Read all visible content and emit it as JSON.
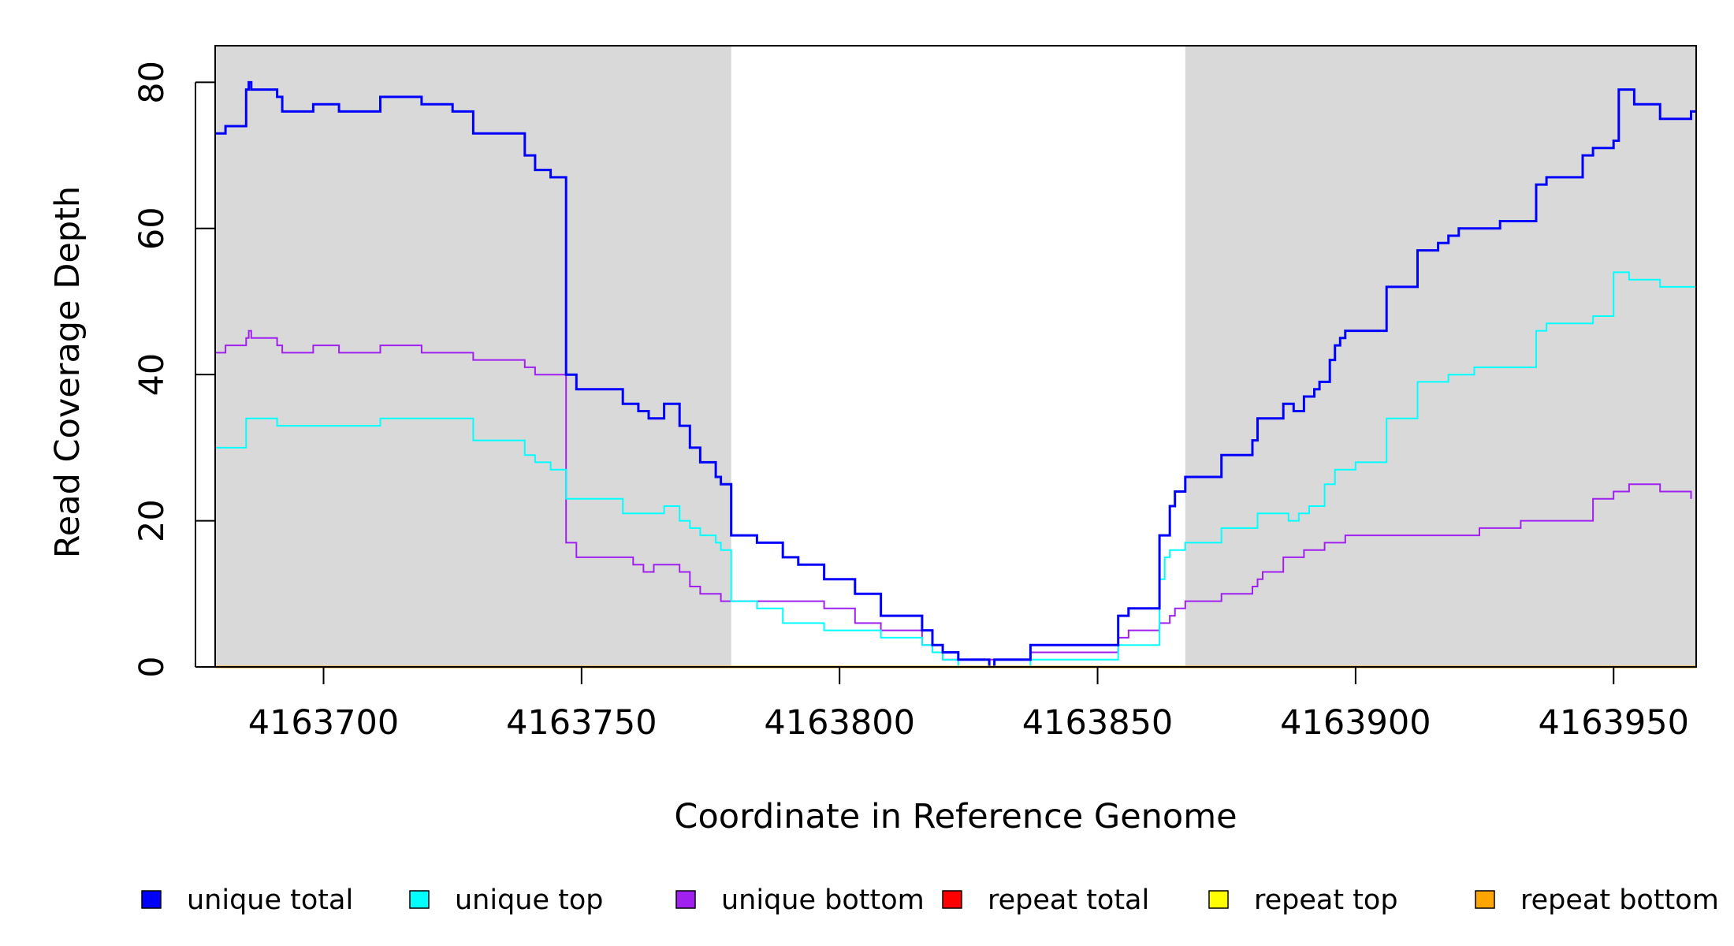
{
  "chart_data": {
    "type": "line",
    "xlabel": "Coordinate in Reference Genome",
    "ylabel": "Read Coverage Depth",
    "xlim": [
      4163679,
      4163966
    ],
    "ylim": [
      0,
      85
    ],
    "x_ticks": [
      4163700,
      4163750,
      4163800,
      4163850,
      4163900,
      4163950
    ],
    "x_tick_labels": [
      "4163700",
      "4163750",
      "4163800",
      "4163850",
      "4163900",
      "4163950"
    ],
    "y_ticks": [
      0,
      20,
      40,
      60,
      80
    ],
    "y_tick_labels": [
      "0",
      "20",
      "40",
      "60",
      "80"
    ],
    "shaded_regions": [
      [
        4163679,
        4163779
      ],
      [
        4163867,
        4163966
      ]
    ],
    "shade_color": "#d9d9d9",
    "legend_position": "bottom",
    "series": [
      {
        "name": "unique total",
        "color": "#0000ff",
        "x": [
          4163679,
          4163681,
          4163685,
          4163685.5,
          4163686,
          4163687,
          4163691,
          4163692,
          4163698,
          4163703,
          4163711,
          4163719,
          4163725,
          4163729,
          4163739,
          4163741,
          4163744,
          4163747,
          4163749,
          4163758,
          4163761,
          4163763,
          4163766,
          4163769,
          4163771,
          4163773,
          4163776,
          4163777,
          4163779,
          4163784,
          4163789,
          4163792,
          4163797,
          4163803,
          4163808,
          4163816,
          4163818,
          4163820,
          4163823,
          4163829,
          4163830,
          4163837,
          4163854,
          4163856,
          4163862,
          4163864,
          4163865,
          4163867,
          4163874,
          4163880,
          4163881,
          4163886,
          4163888,
          4163890,
          4163892,
          4163893,
          4163895,
          4163896,
          4163897,
          4163898,
          4163906,
          4163912,
          4163916,
          4163918,
          4163920,
          4163928,
          4163935,
          4163937,
          4163944,
          4163946,
          4163950,
          4163951,
          4163954,
          4163959,
          4163965,
          4163966
        ],
        "y": [
          73,
          74,
          79,
          80,
          79,
          79,
          78,
          76,
          77,
          76,
          78,
          77,
          76,
          73,
          70,
          68,
          67,
          40,
          38,
          36,
          35,
          34,
          36,
          33,
          30,
          28,
          26,
          25,
          18,
          17,
          15,
          14,
          12,
          10,
          7,
          5,
          3,
          2,
          1,
          0,
          1,
          3,
          7,
          8,
          18,
          22,
          24,
          26,
          29,
          31,
          34,
          36,
          35,
          37,
          38,
          39,
          42,
          44,
          45,
          46,
          52,
          57,
          58,
          59,
          60,
          61,
          66,
          67,
          70,
          71,
          72,
          79,
          77,
          75,
          76,
          76
        ]
      },
      {
        "name": "unique top",
        "color": "#00ffff",
        "x": [
          4163679,
          4163685,
          4163691,
          4163711,
          4163729,
          4163739,
          4163741,
          4163744,
          4163747,
          4163758,
          4163766,
          4163769,
          4163771,
          4163773,
          4163776,
          4163777,
          4163779,
          4163784,
          4163789,
          4163797,
          4163808,
          4163816,
          4163818,
          4163820,
          4163823,
          4163829,
          4163837,
          4163854,
          4163862,
          4163863,
          4163864,
          4163865,
          4163867,
          4163874,
          4163881,
          4163887,
          4163889,
          4163891,
          4163894,
          4163896,
          4163900,
          4163906,
          4163912,
          4163918,
          4163923,
          4163935,
          4163937,
          4163946,
          4163950,
          4163953,
          4163959,
          4163966
        ],
        "y": [
          30,
          34,
          33,
          34,
          31,
          29,
          28,
          27,
          23,
          21,
          22,
          20,
          19,
          18,
          17,
          16,
          9,
          8,
          6,
          5,
          4,
          3,
          2,
          1,
          0,
          0,
          1,
          3,
          12,
          15,
          16,
          16,
          17,
          19,
          21,
          20,
          21,
          22,
          25,
          27,
          28,
          34,
          39,
          40,
          41,
          46,
          47,
          48,
          54,
          53,
          52,
          54
        ]
      },
      {
        "name": "unique bottom",
        "color": "#a020f0",
        "x": [
          4163679,
          4163681,
          4163685,
          4163685.5,
          4163686,
          4163687,
          4163691,
          4163692,
          4163698,
          4163703,
          4163711,
          4163719,
          4163725,
          4163729,
          4163739,
          4163741,
          4163747,
          4163749,
          4163760,
          4163762,
          4163764,
          4163766,
          4163769,
          4163771,
          4163773,
          4163777,
          4163779,
          4163792,
          4163797,
          4163803,
          4163808,
          4163816,
          4163818,
          4163820,
          4163823,
          4163829,
          4163837,
          4163854,
          4163856,
          4163862,
          4163864,
          4163865,
          4163867,
          4163874,
          4163880,
          4163881,
          4163882,
          4163886,
          4163890,
          4163894,
          4163898,
          4163916,
          4163924,
          4163932,
          4163946,
          4163950,
          4163953,
          4163959,
          4163965
        ],
        "y": [
          43,
          44,
          45,
          46,
          45,
          45,
          44,
          43,
          44,
          43,
          44,
          43,
          43,
          42,
          41,
          40,
          17,
          15,
          14,
          13,
          14,
          14,
          13,
          11,
          10,
          9,
          9,
          9,
          8,
          6,
          5,
          3,
          2,
          1,
          1,
          1,
          2,
          4,
          5,
          6,
          7,
          8,
          9,
          10,
          11,
          12,
          13,
          15,
          16,
          17,
          18,
          18,
          19,
          20,
          23,
          24,
          25,
          24,
          23
        ]
      },
      {
        "name": "repeat total",
        "color": "#ff0000",
        "x": [
          4163679,
          4163966
        ],
        "y": [
          0,
          0
        ]
      },
      {
        "name": "repeat top",
        "color": "#ffff00",
        "x": [
          4163679,
          4163966
        ],
        "y": [
          0,
          0
        ]
      },
      {
        "name": "repeat bottom",
        "color": "#ffa500",
        "x": [
          4163679,
          4163966
        ],
        "y": [
          0,
          0
        ]
      }
    ]
  }
}
